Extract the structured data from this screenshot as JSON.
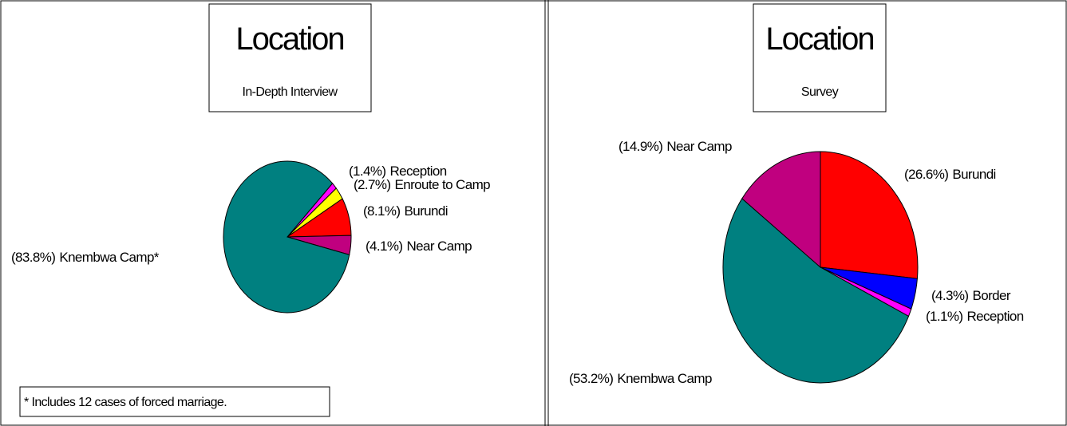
{
  "chart_data": [
    {
      "type": "pie",
      "title": "Location",
      "subtitle": "In-Depth Interview",
      "categories": [
        "Reception",
        "Enroute to Camp",
        "Burundi",
        "Near Camp",
        "Knembwa Camp*"
      ],
      "values": [
        1.4,
        2.7,
        8.1,
        4.1,
        83.8
      ],
      "value_labels": [
        "(1.4%)",
        "(2.7%)",
        "(8.1%)",
        "(4.1%)",
        "(83.8%)"
      ],
      "colors": [
        "#ff00ff",
        "#ffff00",
        "#ff0000",
        "#c0007f",
        "#008080"
      ],
      "annotation": "* Includes 12 cases of forced marriage."
    },
    {
      "type": "pie",
      "title": "Location",
      "subtitle": "Survey",
      "categories": [
        "Burundi",
        "Border",
        "Reception",
        "Knembwa Camp",
        "Near Camp"
      ],
      "values": [
        26.6,
        4.3,
        1.1,
        53.2,
        14.9
      ],
      "value_labels": [
        "(26.6%)",
        "(4.3%)",
        "(1.1%)",
        "(53.2%)",
        "(14.9%)"
      ],
      "colors": [
        "#ff0000",
        "#0000ff",
        "#ff00ff",
        "#008080",
        "#c0007f"
      ]
    }
  ]
}
